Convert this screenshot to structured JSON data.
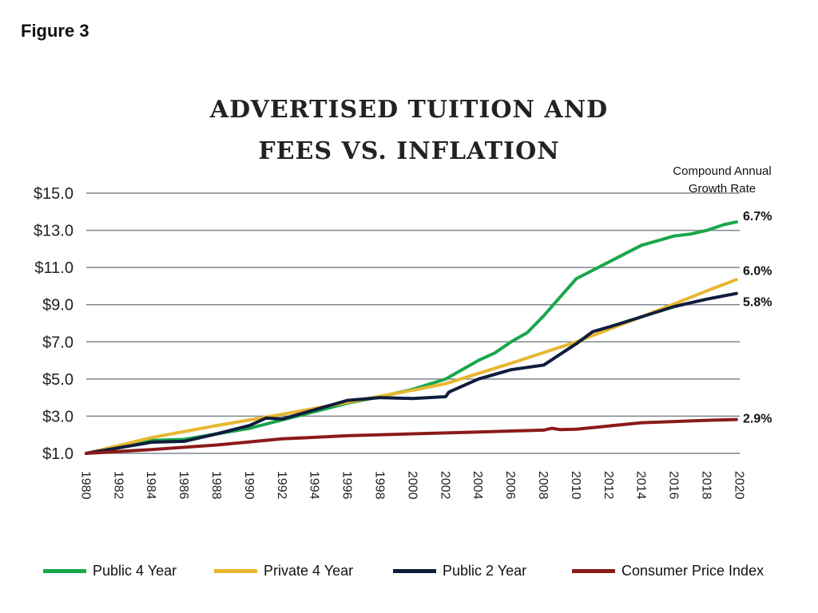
{
  "figure_label": "Figure 3",
  "title_line1": "ADVERTISED TUITION AND",
  "title_line2": "FEES VS. INFLATION",
  "cagr_heading_line1": "Compound Annual",
  "cagr_heading_line2": "Growth Rate",
  "chart_data": {
    "type": "line",
    "title": "ADVERTISED TUITION AND FEES VS. INFLATION",
    "xlim": [
      1980,
      2020
    ],
    "ylim": [
      1.0,
      15.0
    ],
    "yticks": [
      1.0,
      3.0,
      5.0,
      7.0,
      9.0,
      11.0,
      13.0,
      15.0
    ],
    "ytick_labels": [
      "$1.0",
      "$3.0",
      "$5.0",
      "$7.0",
      "$9.0",
      "$11.0",
      "$13.0",
      "$15.0"
    ],
    "xticks": [
      1980,
      1982,
      1984,
      1986,
      1988,
      1990,
      1992,
      1994,
      1996,
      1998,
      2000,
      2002,
      2004,
      2006,
      2008,
      2010,
      2012,
      2014,
      2016,
      2018,
      2020
    ],
    "xtick_labels": [
      "1980",
      "1982",
      "1984",
      "1986",
      "1988",
      "1990",
      "1992",
      "1994",
      "1996",
      "1998",
      "2000",
      "2002",
      "2004",
      "2006",
      "2008",
      "2010",
      "2012",
      "2014",
      "2016",
      "2018",
      "2020"
    ],
    "grid": "horizontal",
    "legend_position": "bottom",
    "series": [
      {
        "name": "Public 4 Year",
        "color": "#1aa64a",
        "cagr": "6.7%",
        "x": [
          1980,
          1982,
          1984,
          1986,
          1988,
          1990,
          1992,
          1994,
          1996,
          1998,
          2000,
          2002,
          2004,
          2005,
          2006,
          2007,
          2008,
          2009,
          2010,
          2011,
          2012,
          2013,
          2014,
          2015,
          2016,
          2017,
          2018,
          2019,
          2019.8
        ],
        "y": [
          1.0,
          1.4,
          1.7,
          1.75,
          2.05,
          2.35,
          2.8,
          3.25,
          3.7,
          4.05,
          4.45,
          5.0,
          6.0,
          6.4,
          7.0,
          7.5,
          8.4,
          9.4,
          10.4,
          10.85,
          11.3,
          11.75,
          12.2,
          12.45,
          12.7,
          12.8,
          13.0,
          13.3,
          13.45
        ]
      },
      {
        "name": "Private 4 Year",
        "color": "#e7b731",
        "cagr": "6.0%",
        "x": [
          1980,
          1984,
          1988,
          1992,
          1996,
          2000,
          2002,
          2006,
          2010,
          2014,
          2018,
          2019.8
        ],
        "y": [
          1.0,
          1.85,
          2.5,
          3.1,
          3.75,
          4.4,
          4.75,
          5.85,
          7.0,
          8.35,
          9.75,
          10.35
        ]
      },
      {
        "name": "Public 2 Year",
        "color": "#0f1d3d",
        "cagr": "5.8%",
        "x": [
          1980,
          1982,
          1984,
          1986,
          1988,
          1990,
          1991,
          1992,
          1994,
          1996,
          1998,
          2000,
          2002,
          2002.2,
          2004,
          2006,
          2008,
          2010,
          2011,
          2012,
          2014,
          2016,
          2018,
          2019.8
        ],
        "y": [
          1.0,
          1.3,
          1.6,
          1.65,
          2.05,
          2.5,
          2.9,
          2.85,
          3.35,
          3.85,
          4.0,
          3.95,
          4.05,
          4.3,
          5.0,
          5.5,
          5.75,
          6.9,
          7.55,
          7.8,
          8.35,
          8.9,
          9.3,
          9.6
        ]
      },
      {
        "name": "Consumer Price Index",
        "color": "#8b1a1a",
        "cagr": "2.9%",
        "x": [
          1980,
          1984,
          1988,
          1992,
          1996,
          2000,
          2004,
          2008,
          2008.5,
          2009,
          2010,
          2014,
          2018,
          2019.8
        ],
        "y": [
          1.0,
          1.2,
          1.45,
          1.78,
          1.95,
          2.05,
          2.15,
          2.25,
          2.35,
          2.28,
          2.3,
          2.65,
          2.78,
          2.82
        ]
      }
    ]
  }
}
